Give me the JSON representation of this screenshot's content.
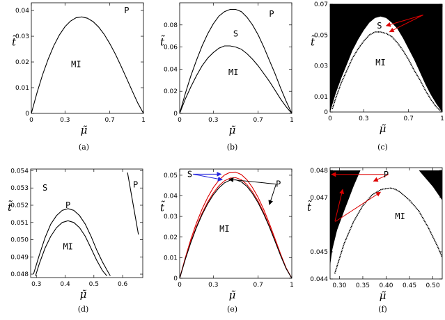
{
  "chart_data": [
    {
      "panel": "a",
      "type": "line",
      "caption": "(a)",
      "xlabel": "μ̃",
      "ylabel": "t̃",
      "xlim": [
        0,
        1
      ],
      "ylim": [
        0,
        0.043
      ],
      "xticks": [
        0,
        0.3,
        0.7,
        1
      ],
      "xtick_labels": [
        "0",
        "0.3",
        "0.7",
        "1"
      ],
      "yticks": [
        0,
        0.01,
        0.02,
        0.03,
        0.04
      ],
      "ytick_labels": [
        "0",
        "0.01",
        "0.02",
        "0.03",
        "0.04"
      ],
      "series": [
        {
          "color": "#000000",
          "x": [
            0,
            0.05,
            0.1,
            0.15,
            0.2,
            0.25,
            0.3,
            0.35,
            0.4,
            0.45,
            0.5,
            0.55,
            0.6,
            0.65,
            0.7,
            0.75,
            0.8,
            0.85,
            0.9,
            0.95,
            1
          ],
          "y": [
            0,
            0.0079,
            0.015,
            0.0211,
            0.0263,
            0.0305,
            0.0337,
            0.0359,
            0.0372,
            0.0375,
            0.037,
            0.0357,
            0.0336,
            0.0307,
            0.0271,
            0.023,
            0.0184,
            0.0136,
            0.0087,
            0.004,
            0
          ]
        }
      ],
      "labels": [
        {
          "text": "P",
          "x": 0.85,
          "y": 0.04
        },
        {
          "text": "MI",
          "x": 0.4,
          "y": 0.019
        }
      ]
    },
    {
      "panel": "b",
      "type": "line",
      "caption": "(b)",
      "xlabel": "μ̃",
      "ylabel": "t̃",
      "xlim": [
        0,
        1
      ],
      "ylim": [
        0,
        0.1
      ],
      "xticks": [
        0,
        0.3,
        0.7,
        1
      ],
      "xtick_labels": [
        "0",
        "0.3",
        "0.7",
        "1"
      ],
      "yticks": [
        0,
        0.02,
        0.04,
        0.06,
        0.08
      ],
      "ytick_labels": [
        "0",
        "0.02",
        "0.04",
        "0.06",
        "0.08"
      ],
      "series": [
        {
          "color": "#000000",
          "x": [
            0,
            0.05,
            0.1,
            0.15,
            0.2,
            0.25,
            0.3,
            0.35,
            0.4,
            0.45,
            0.5,
            0.55,
            0.6,
            0.65,
            0.7,
            0.75,
            0.8,
            0.85,
            0.9,
            0.95,
            1
          ],
          "y": [
            0,
            0.018,
            0.034,
            0.048,
            0.061,
            0.072,
            0.081,
            0.088,
            0.092,
            0.094,
            0.094,
            0.092,
            0.087,
            0.08,
            0.071,
            0.06,
            0.048,
            0.036,
            0.023,
            0.011,
            0
          ]
        },
        {
          "color": "#000000",
          "x": [
            0,
            0.05,
            0.1,
            0.15,
            0.2,
            0.25,
            0.3,
            0.35,
            0.4,
            0.45,
            0.5,
            0.55,
            0.6,
            0.65,
            0.7,
            0.75,
            0.8,
            0.85,
            0.9,
            0.95,
            1
          ],
          "y": [
            0,
            0.013,
            0.024,
            0.034,
            0.043,
            0.05,
            0.055,
            0.059,
            0.061,
            0.061,
            0.06,
            0.058,
            0.054,
            0.049,
            0.043,
            0.036,
            0.029,
            0.021,
            0.013,
            0.006,
            0
          ]
        }
      ],
      "labels": [
        {
          "text": "P",
          "x": 0.82,
          "y": 0.09
        },
        {
          "text": "S",
          "x": 0.5,
          "y": 0.072
        },
        {
          "text": "MI",
          "x": 0.48,
          "y": 0.037
        }
      ]
    },
    {
      "panel": "c",
      "type": "line",
      "caption": "(c)",
      "xlabel": "μ̃",
      "ylabel": "t̃",
      "xlim": [
        0,
        1
      ],
      "ylim": [
        0,
        0.07
      ],
      "xticks": [
        0,
        0.3,
        0.7,
        1
      ],
      "xtick_labels": [
        "0",
        "0.3",
        "0.7",
        "1"
      ],
      "yticks": [
        0,
        0.01,
        0.03,
        0.05,
        0.07
      ],
      "ytick_labels": [
        "0",
        "0.01",
        "0.03",
        "0.05",
        "0.07"
      ],
      "black_region_boundary": {
        "x": [
          0,
          0.05,
          0.1,
          0.15,
          0.2,
          0.25,
          0.3,
          0.35,
          0.4,
          0.45,
          0.5,
          0.55,
          0.6,
          0.65,
          0.7,
          0.75,
          0.8,
          0.85,
          0.9,
          0.95,
          1
        ],
        "y": [
          0,
          0.012,
          0.022,
          0.031,
          0.04,
          0.047,
          0.053,
          0.058,
          0.061,
          0.062,
          0.061,
          0.058,
          0.054,
          0.048,
          0.041,
          0.034,
          0.026,
          0.018,
          0.011,
          0.005,
          0
        ]
      },
      "series": [
        {
          "color": "#000000",
          "x": [
            0.02,
            0.05,
            0.1,
            0.15,
            0.2,
            0.25,
            0.3,
            0.35,
            0.4,
            0.45,
            0.5,
            0.55,
            0.6,
            0.65,
            0.7,
            0.75,
            0.8,
            0.85,
            0.9,
            0.95,
            1
          ],
          "y": [
            0.002,
            0.009,
            0.019,
            0.027,
            0.035,
            0.041,
            0.046,
            0.05,
            0.052,
            0.052,
            0.051,
            0.049,
            0.045,
            0.04,
            0.034,
            0.027,
            0.021,
            0.014,
            0.008,
            0.003,
            0
          ]
        }
      ],
      "labels": [
        {
          "text": "S",
          "x": 0.44,
          "y": 0.056
        },
        {
          "text": "MI",
          "x": 0.45,
          "y": 0.032
        },
        {
          "text": "P",
          "x": 0.86,
          "y": 0.063,
          "color": "#dd0000"
        }
      ],
      "arrows": [
        {
          "from": [
            0.83,
            0.063
          ],
          "to": [
            0.5,
            0.056
          ],
          "color": "#dd0000"
        },
        {
          "from": [
            0.83,
            0.063
          ],
          "to": [
            0.53,
            0.052
          ],
          "color": "#dd0000"
        }
      ]
    },
    {
      "panel": "d",
      "type": "line",
      "caption": "(d)",
      "xlabel": "μ̃",
      "ylabel": "t̃",
      "xlim": [
        0.28,
        0.67
      ],
      "ylim": [
        0.0478,
        0.0541
      ],
      "xticks": [
        0.3,
        0.4,
        0.5,
        0.6
      ],
      "xtick_labels": [
        "0.3",
        "0.4",
        "0.5",
        "0.6"
      ],
      "yticks": [
        0.048,
        0.049,
        0.05,
        0.051,
        0.052,
        0.053,
        0.054
      ],
      "ytick_labels": [
        "0.048",
        "0.049",
        "0.050",
        "0.051",
        "0.052",
        "0.053",
        "0.054"
      ],
      "series": [
        {
          "color": "#000000",
          "x": [
            0.29,
            0.31,
            0.33,
            0.35,
            0.37,
            0.39,
            0.41,
            0.43,
            0.45,
            0.47,
            0.49,
            0.51,
            0.53,
            0.55,
            0.557
          ],
          "y": [
            0.048,
            0.0491,
            0.0501,
            0.0509,
            0.0514,
            0.0517,
            0.0518,
            0.0517,
            0.0514,
            0.0509,
            0.0502,
            0.0494,
            0.0487,
            0.0481,
            0.0479
          ]
        },
        {
          "color": "#000000",
          "x": [
            0.297,
            0.31,
            0.33,
            0.35,
            0.37,
            0.39,
            0.41,
            0.43,
            0.45,
            0.47,
            0.49,
            0.51,
            0.53,
            0.545
          ],
          "y": [
            0.0479,
            0.0486,
            0.0495,
            0.0502,
            0.0507,
            0.051,
            0.0511,
            0.051,
            0.0507,
            0.0502,
            0.0495,
            0.0488,
            0.0482,
            0.0479
          ]
        },
        {
          "color": "#000000",
          "x": [
            0.617,
            0.655
          ],
          "y": [
            0.0539,
            0.0503
          ]
        }
      ],
      "labels": [
        {
          "text": "S",
          "x": 0.33,
          "y": 0.053
        },
        {
          "text": "P",
          "x": 0.41,
          "y": 0.052
        },
        {
          "text": "MI",
          "x": 0.41,
          "y": 0.0496
        },
        {
          "text": "P",
          "x": 0.645,
          "y": 0.0532
        }
      ]
    },
    {
      "panel": "e",
      "type": "line",
      "caption": "(e)",
      "xlabel": "μ̃",
      "ylabel": "t̃",
      "xlim": [
        0,
        1
      ],
      "ylim": [
        0,
        0.053
      ],
      "xticks": [
        0,
        0.3,
        0.7,
        1
      ],
      "xtick_labels": [
        "0",
        "0.3",
        "0.7",
        "1"
      ],
      "yticks": [
        0,
        0.01,
        0.02,
        0.03,
        0.04,
        0.05
      ],
      "ytick_labels": [
        "0",
        "0.01",
        "0.02",
        "0.03",
        "0.04",
        "0.05"
      ],
      "series": [
        {
          "color": "#dd0000",
          "x": [
            0,
            0.05,
            0.1,
            0.15,
            0.2,
            0.25,
            0.3,
            0.35,
            0.4,
            0.45,
            0.5,
            0.55,
            0.6,
            0.65,
            0.7,
            0.75,
            0.8,
            0.85,
            0.9,
            0.95,
            1
          ],
          "y": [
            0,
            0.01,
            0.019,
            0.0268,
            0.0336,
            0.0393,
            0.044,
            0.0476,
            0.0501,
            0.0514,
            0.0515,
            0.0503,
            0.0478,
            0.044,
            0.0392,
            0.0333,
            0.0266,
            0.0192,
            0.0118,
            0.005,
            0
          ]
        },
        {
          "color": "#dd0000",
          "x": [
            0,
            0.05,
            0.1,
            0.15,
            0.2,
            0.25,
            0.3,
            0.35,
            0.4,
            0.45,
            0.5,
            0.55,
            0.6,
            0.65,
            0.7,
            0.75,
            0.8,
            0.85,
            0.9,
            0.95,
            1
          ],
          "y": [
            0,
            0.0094,
            0.0178,
            0.0252,
            0.0316,
            0.037,
            0.0414,
            0.0449,
            0.0473,
            0.0486,
            0.0488,
            0.0478,
            0.0455,
            0.0419,
            0.0374,
            0.0318,
            0.0254,
            0.0184,
            0.0113,
            0.0048,
            0
          ]
        },
        {
          "color": "#000000",
          "x": [
            0,
            0.05,
            0.1,
            0.15,
            0.2,
            0.25,
            0.3,
            0.35,
            0.4,
            0.45,
            0.5,
            0.55,
            0.6,
            0.65,
            0.7,
            0.75,
            0.8,
            0.85,
            0.9,
            0.95,
            1
          ],
          "y": [
            0,
            0.0092,
            0.0174,
            0.0246,
            0.0309,
            0.0362,
            0.0405,
            0.0439,
            0.0463,
            0.0476,
            0.0478,
            0.0468,
            0.0446,
            0.0411,
            0.0366,
            0.0311,
            0.0249,
            0.018,
            0.011,
            0.0047,
            0
          ]
        }
      ],
      "labels": [
        {
          "text": "S",
          "x": 0.09,
          "y": 0.0505,
          "color": "#2222dd"
        },
        {
          "text": "MI",
          "x": 0.4,
          "y": 0.024
        },
        {
          "text": "P",
          "x": 0.88,
          "y": 0.0457
        }
      ],
      "arrows": [
        {
          "from": [
            0.12,
            0.0505
          ],
          "to": [
            0.37,
            0.0505
          ],
          "color": "#2222dd"
        },
        {
          "from": [
            0.12,
            0.0505
          ],
          "to": [
            0.38,
            0.0478
          ],
          "color": "#2222dd"
        },
        {
          "from": [
            0.86,
            0.0457
          ],
          "to": [
            0.44,
            0.048
          ],
          "color": "#000000"
        },
        {
          "from": [
            0.86,
            0.0457
          ],
          "to": [
            0.8,
            0.0357
          ],
          "color": "#000000"
        }
      ]
    },
    {
      "panel": "f",
      "type": "line",
      "caption": "(f)",
      "xlabel": "μ̃",
      "ylabel": "t̃",
      "xlim": [
        0.28,
        0.52
      ],
      "ylim": [
        0.044,
        0.0481
      ],
      "xticks": [
        0.3,
        0.35,
        0.4,
        0.45,
        0.5
      ],
      "xtick_labels": [
        "0.30",
        "0.35",
        "0.40",
        "0.45",
        "0.50"
      ],
      "yticks": [
        0.044,
        0.045,
        0.047,
        0.048
      ],
      "ytick_labels": [
        "0.044",
        "0.045",
        "0.047",
        "0.048"
      ],
      "black_regions": [
        {
          "x": [
            0.28,
            0.28,
            0.3,
            0.32,
            0.34,
            0.345
          ],
          "y": [
            0.0445,
            0.048,
            0.048,
            0.048,
            0.048,
            0.048
          ],
          "lower_x": [
            0.345,
            0.33,
            0.31,
            0.295,
            0.285,
            0.28
          ],
          "lower_y": [
            0.048,
            0.0474,
            0.0465,
            0.0458,
            0.0451,
            0.0445
          ]
        },
        {
          "x": [
            0.47,
            0.52,
            0.52
          ],
          "y": [
            0.048,
            0.048,
            0.0469
          ],
          "lower_x": [
            0.52,
            0.5,
            0.48,
            0.47
          ],
          "lower_y": [
            0.0469,
            0.0474,
            0.0478,
            0.048
          ]
        }
      ],
      "series": [
        {
          "color": "#000000",
          "x": [
            0.29,
            0.31,
            0.33,
            0.35,
            0.37,
            0.39,
            0.41,
            0.42,
            0.43,
            0.45,
            0.47,
            0.49,
            0.51,
            0.52
          ],
          "y": [
            0.0442,
            0.0453,
            0.0461,
            0.0467,
            0.0471,
            0.0473,
            0.04735,
            0.0473,
            0.0472,
            0.0469,
            0.0465,
            0.0459,
            0.0452,
            0.0448
          ]
        }
      ],
      "labels": [
        {
          "text": "P",
          "x": 0.4,
          "y": 0.04785,
          "color": "#dd0000"
        },
        {
          "text": "S",
          "x": 0.288,
          "y": 0.046,
          "color": "#dd0000"
        },
        {
          "text": "MI",
          "x": 0.43,
          "y": 0.0463
        }
      ],
      "arrows": [
        {
          "from": [
            0.395,
            0.04785
          ],
          "to": [
            0.283,
            0.04785
          ],
          "color": "#dd0000"
        },
        {
          "from": [
            0.405,
            0.04785
          ],
          "to": [
            0.373,
            0.0476
          ],
          "color": "#dd0000"
        },
        {
          "from": [
            0.29,
            0.0461
          ],
          "to": [
            0.307,
            0.0473
          ],
          "color": "#dd0000"
        },
        {
          "from": [
            0.29,
            0.0461
          ],
          "to": [
            0.388,
            0.0472
          ],
          "color": "#dd0000"
        }
      ]
    }
  ]
}
